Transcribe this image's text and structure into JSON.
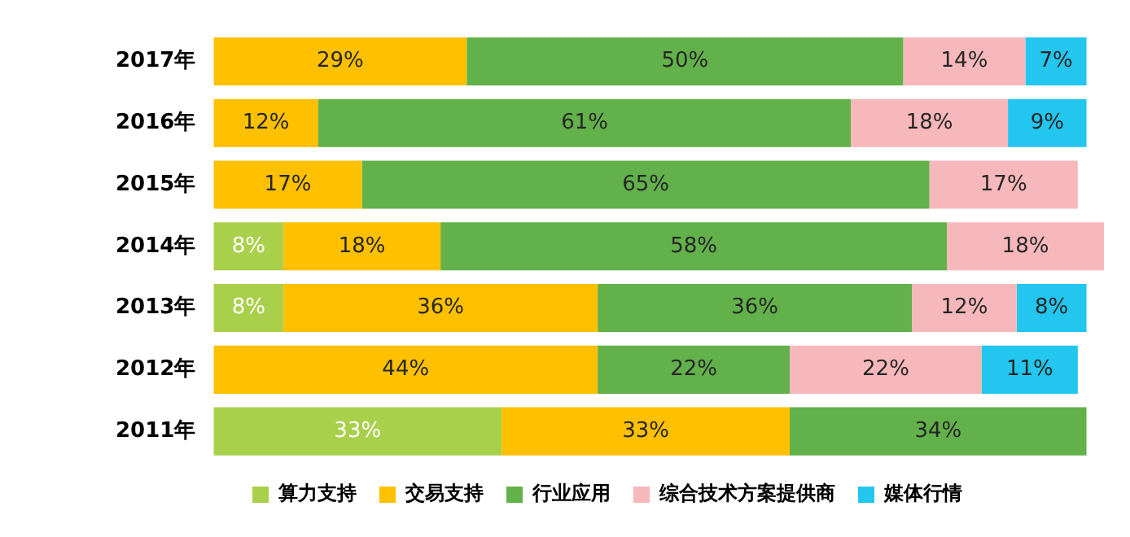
{
  "chart_data": {
    "type": "bar",
    "orientation": "horizontal",
    "stacked": true,
    "categories": [
      "2017年",
      "2016年",
      "2015年",
      "2014年",
      "2013年",
      "2012年",
      "2011年"
    ],
    "legend": "bottom",
    "grid": false,
    "tick_labels": "y",
    "series": [
      {
        "name": "算力支持",
        "color": "#a9d04a",
        "values": [
          null,
          null,
          null,
          8,
          8,
          null,
          33
        ],
        "value_labels": [
          null,
          null,
          null,
          "8%",
          "8%",
          null,
          "33%"
        ]
      },
      {
        "name": "交易支持",
        "color": "#ffc000",
        "values": [
          29,
          12,
          17,
          18,
          36,
          44,
          33
        ],
        "value_labels": [
          "29%",
          "12%",
          "17%",
          "18%",
          "36%",
          "44%",
          "33%"
        ]
      },
      {
        "name": "行业应用",
        "color": "#62b14a",
        "values": [
          50,
          61,
          65,
          58,
          36,
          22,
          34
        ],
        "value_labels": [
          "50%",
          "61%",
          "65%",
          "58%",
          "36%",
          "22%",
          "34%"
        ]
      },
      {
        "name": "综合技术方案提供商",
        "color": "#f7b8bb",
        "values": [
          14,
          18,
          17,
          18,
          12,
          22,
          null
        ],
        "value_labels": [
          "14%",
          "18%",
          "17%",
          "18%",
          "12%",
          "22%",
          null
        ]
      },
      {
        "name": "媒体行情",
        "color": "#22c6ef",
        "values": [
          7,
          9,
          null,
          null,
          8,
          11,
          null
        ],
        "value_labels": [
          "7%",
          "9%",
          null,
          null,
          "8%",
          "11%",
          null
        ]
      }
    ]
  }
}
